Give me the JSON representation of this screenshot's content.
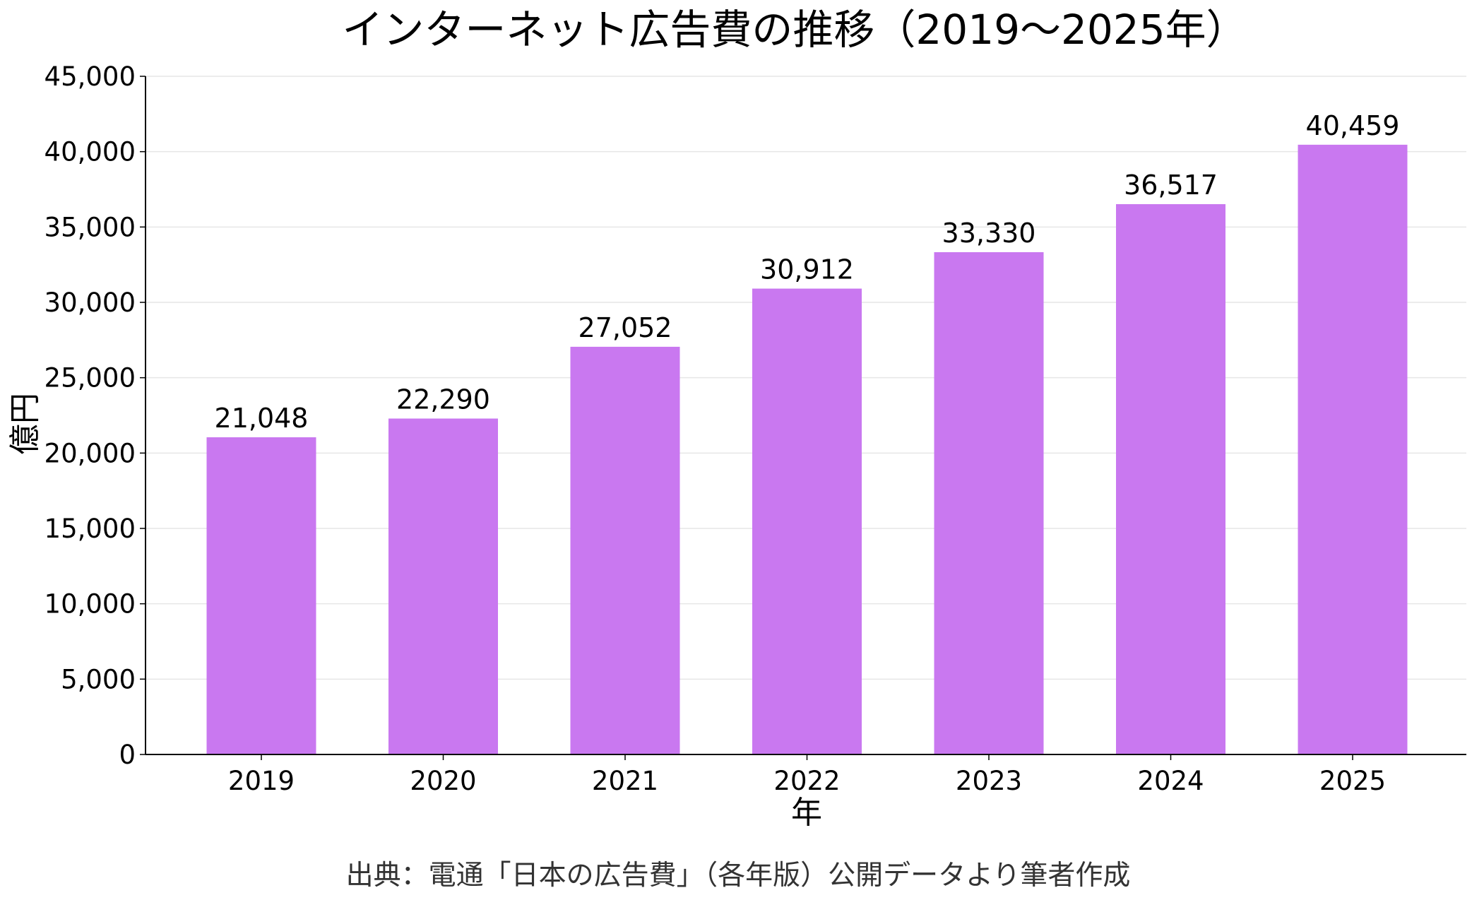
{
  "chart_data": {
    "type": "bar",
    "title": "インターネット広告費の推移（2019～2025年）",
    "xlabel": "年",
    "ylabel": "億円",
    "categories": [
      "2019",
      "2020",
      "2021",
      "2022",
      "2023",
      "2024",
      "2025"
    ],
    "values": [
      21048,
      22290,
      27052,
      30912,
      33330,
      36517,
      40459
    ],
    "data_labels": [
      "21,048",
      "22,290",
      "27,052",
      "30,912",
      "33,330",
      "36,517",
      "40,459"
    ],
    "ylim": [
      0,
      45000
    ],
    "yticks": [
      0,
      5000,
      10000,
      15000,
      20000,
      25000,
      30000,
      35000,
      40000,
      45000
    ],
    "ytick_labels": [
      "0",
      "5,000",
      "10,000",
      "15,000",
      "20,000",
      "25,000",
      "30,000",
      "35,000",
      "40,000",
      "45,000"
    ],
    "grid": "horizontal",
    "legend": "none",
    "bar_color": "#c978f0",
    "grid_color": "#e6e6e6",
    "axis_color": "#000000",
    "source": "出典：電通「日本の広告費」（各年版）公開データより筆者作成"
  }
}
